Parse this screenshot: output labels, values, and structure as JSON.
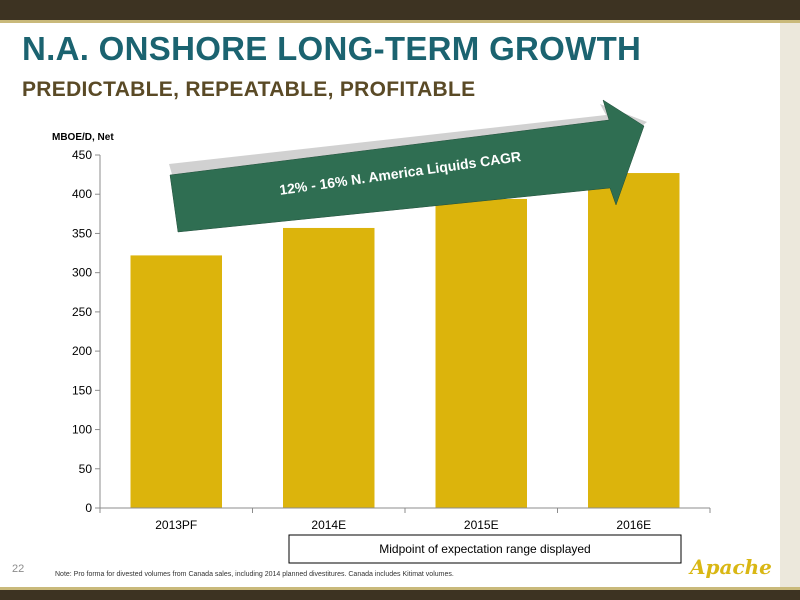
{
  "slide": {
    "title": "N.A. ONSHORE LONG-TERM GROWTH",
    "subtitle": "PREDICTABLE, REPEATABLE, PROFITABLE",
    "page_number": "22",
    "footnote": "Note: Pro forma for divested volumes from Canada sales, including 2014 planned divestitures. Canada includes Kitimat volumes.",
    "logo_text": "Apache"
  },
  "colors": {
    "title": "#1b6370",
    "bar": "#dcb40c",
    "arrow": "#2f6e52",
    "header_bar": "#3d3322"
  },
  "chart_data": {
    "type": "bar",
    "ylabel": "MBOE/D, Net",
    "categories": [
      "2013PF",
      "2014E",
      "2015E",
      "2016E"
    ],
    "values": [
      322,
      357,
      394,
      427
    ],
    "ylim": [
      0,
      450
    ],
    "yticks": [
      0,
      50,
      100,
      150,
      200,
      250,
      300,
      350,
      400,
      450
    ],
    "grid": false,
    "legend": "none",
    "annotations": {
      "arrow_text": "12% - 16% N. America Liquids CAGR",
      "box_text": "Midpoint of expectation range displayed"
    }
  }
}
